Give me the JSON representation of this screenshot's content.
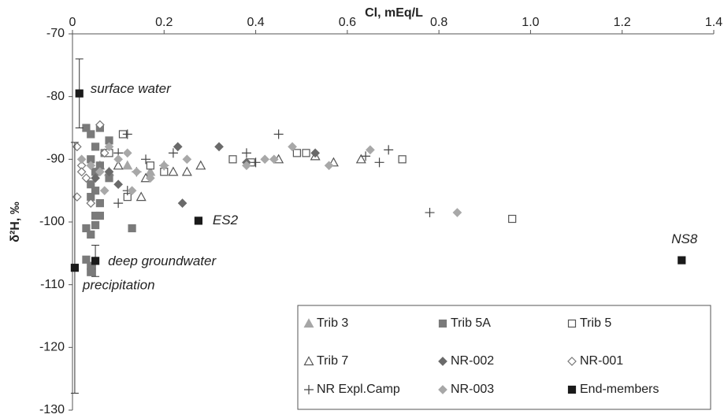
{
  "chart_data": {
    "type": "scatter",
    "title": "Cl, mEq/L",
    "y_label": "δ²H, ‰",
    "xlim": [
      0,
      1.4
    ],
    "xticks": [
      0,
      0.2,
      0.4,
      0.6,
      0.8,
      {
        "value": 1,
        "label": "1.0"
      },
      1.2,
      1.4
    ],
    "ylim": [
      -130,
      -70
    ],
    "yticks": [
      -70,
      -80,
      -90,
      -100,
      -110,
      -120,
      -130
    ],
    "grid": false,
    "legend": "lower right",
    "series": [
      {
        "name": "Trib 3",
        "color": "#a6a6a6",
        "marker": "triangle",
        "filled": true,
        "x": [
          0.06,
          0.08,
          0.12,
          0.17
        ],
        "values": [
          -91,
          -92,
          -91,
          -92
        ]
      },
      {
        "name": "Trib 5A",
        "color": "#7a7a7a",
        "marker": "square",
        "filled": true,
        "x": [
          0.03,
          0.04,
          0.05,
          0.04,
          0.05,
          0.04,
          0.05,
          0.04,
          0.06,
          0.05,
          0.06,
          0.03,
          0.04,
          0.05,
          0.03,
          0.04,
          0.04,
          0.06,
          0.07,
          0.08,
          0.08,
          0.13,
          0.06
        ],
        "values": [
          -85,
          -86,
          -88,
          -90,
          -92,
          -94,
          -95,
          -96,
          -97,
          -99,
          -99,
          -101,
          -102,
          -100.5,
          -106,
          -107,
          -108,
          -91,
          -89,
          -87,
          -93,
          -101,
          -85
        ]
      },
      {
        "name": "Trib 5",
        "color": "#555555",
        "marker": "square",
        "filled": false,
        "x": [
          0.11,
          0.08,
          0.17,
          0.12,
          0.35,
          0.39,
          0.49,
          0.51,
          0.72,
          0.96,
          0.2
        ],
        "values": [
          -86,
          -89,
          -91,
          -96,
          -90,
          -90.5,
          -89,
          -89,
          -90,
          -99.5,
          -92
        ]
      },
      {
        "name": "Trib 7",
        "color": "#555555",
        "marker": "triangle",
        "filled": false,
        "x": [
          0.1,
          0.15,
          0.22,
          0.25,
          0.28,
          0.45,
          0.53,
          0.57,
          0.63,
          0.16
        ],
        "values": [
          -91,
          -96,
          -92,
          -92,
          -91,
          -90,
          -89.5,
          -90.5,
          -90,
          -93
        ]
      },
      {
        "name": "NR-002",
        "color": "#6a6a6a",
        "marker": "diamond",
        "filled": true,
        "x": [
          0.05,
          0.08,
          0.23,
          0.32,
          0.38,
          0.53,
          0.24,
          0.1
        ],
        "values": [
          -93,
          -92,
          -88,
          -88,
          -90.5,
          -89,
          -97,
          -94
        ]
      },
      {
        "name": "NR-001",
        "color": "#777777",
        "marker": "diamond",
        "filled": false,
        "x": [
          0.01,
          0.02,
          0.03,
          0.06,
          0.01,
          0.07,
          0.04,
          0.02
        ],
        "values": [
          -88,
          -91,
          -93,
          -84.5,
          -96,
          -89,
          -97,
          -92
        ]
      },
      {
        "name": "NR Expl.Camp",
        "color": "#444444",
        "marker": "plus",
        "filled": false,
        "x": [
          0.12,
          0.1,
          0.14,
          0.16,
          0.2,
          0.22,
          0.38,
          0.4,
          0.45,
          0.64,
          0.67,
          0.69,
          0.78,
          0.1,
          0.12
        ],
        "values": [
          -86,
          -89,
          -92,
          -90,
          -91,
          -89,
          -89,
          -90.5,
          -86,
          -89.5,
          -90.5,
          -88.5,
          -98.5,
          -97,
          -95
        ]
      },
      {
        "name": "NR-003",
        "color": "#a8a8a8",
        "marker": "diamond",
        "filled": true,
        "x": [
          0.02,
          0.04,
          0.06,
          0.08,
          0.1,
          0.12,
          0.14,
          0.17,
          0.2,
          0.25,
          0.42,
          0.44,
          0.48,
          0.56,
          0.65,
          0.84,
          0.38,
          0.07,
          0.13
        ],
        "values": [
          -90,
          -91,
          -92,
          -88,
          -90,
          -89,
          -92,
          -93,
          -91,
          -90,
          -90,
          -90,
          -88,
          -91,
          -88.5,
          -98.5,
          -91,
          -95,
          -95
        ]
      },
      {
        "name": "End-members",
        "color": "#1a1a1a",
        "marker": "square",
        "filled": true,
        "x": [
          0.015,
          0.05,
          0.005,
          0.275,
          1.33
        ],
        "values": [
          -79.5,
          -106.2,
          -107.3,
          -99.8,
          -106.1
        ],
        "errors": [
          5.5,
          2.5,
          20,
          null,
          null
        ]
      }
    ],
    "annotations": [
      "surface water",
      "deep groundwater",
      "precipitation",
      "ES2",
      "NS8"
    ]
  }
}
